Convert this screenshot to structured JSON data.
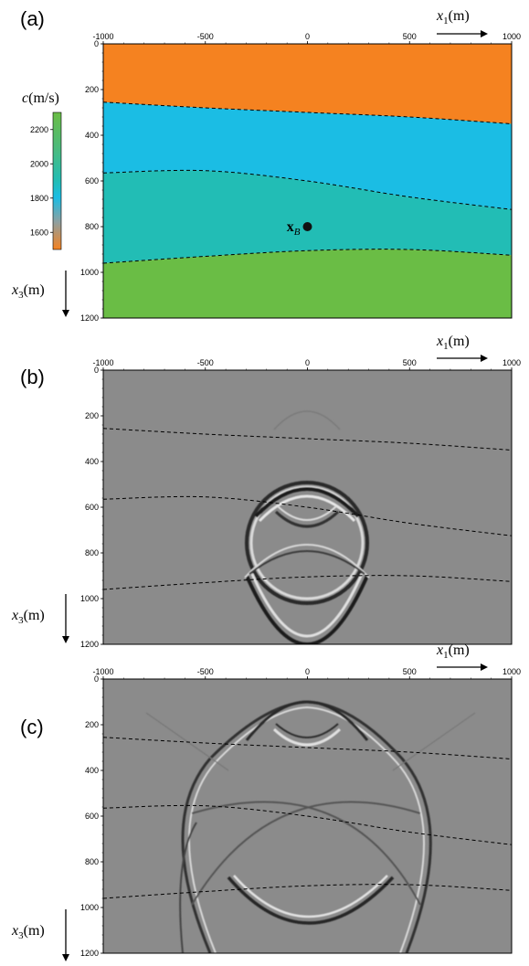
{
  "panels": [
    {
      "label": "(a)",
      "type": "velocity-model"
    },
    {
      "label": "(b)",
      "type": "wavefield-snapshot"
    },
    {
      "label": "(c)",
      "type": "wavefield-snapshot"
    }
  ],
  "axes": {
    "x_ticks": [
      "-1000",
      "-500",
      "0",
      "500",
      "1000"
    ],
    "z_ticks": [
      "0",
      "200",
      "400",
      "600",
      "800",
      "1000",
      "1200"
    ],
    "x_range": [
      -1000,
      1000
    ],
    "z_range": [
      0,
      1200
    ],
    "x_label_var": "x",
    "x_label_sub": "1",
    "x_label_unit": "(m)",
    "z_label_var": "x",
    "z_label_sub": "3",
    "z_label_unit": "(m)"
  },
  "colorbar": {
    "label_var": "c",
    "label_unit": "(m/s)",
    "ticks": [
      "2200",
      "2000",
      "1800",
      "1600"
    ],
    "range": [
      1500,
      2300
    ]
  },
  "point": {
    "symbol": "x",
    "sub": "B",
    "x": 0,
    "z": 800
  },
  "layers": [
    {
      "color": "#f58220",
      "velocity": 1500
    },
    {
      "color": "#1bbde4",
      "velocity": 1900
    },
    {
      "color": "#22bdb5",
      "velocity": 1950
    },
    {
      "color": "#6abd45",
      "velocity": 2200
    }
  ],
  "interfaces": [
    [
      [
        -1000,
        255
      ],
      [
        -500,
        280
      ],
      [
        0,
        300
      ],
      [
        500,
        320
      ],
      [
        1000,
        350
      ]
    ],
    [
      [
        -1000,
        565
      ],
      [
        -500,
        555
      ],
      [
        0,
        600
      ],
      [
        500,
        670
      ],
      [
        1000,
        725
      ]
    ],
    [
      [
        -1000,
        960
      ],
      [
        -500,
        930
      ],
      [
        0,
        905
      ],
      [
        500,
        900
      ],
      [
        1000,
        925
      ]
    ]
  ],
  "snapshot_background": "#8b8b8b"
}
